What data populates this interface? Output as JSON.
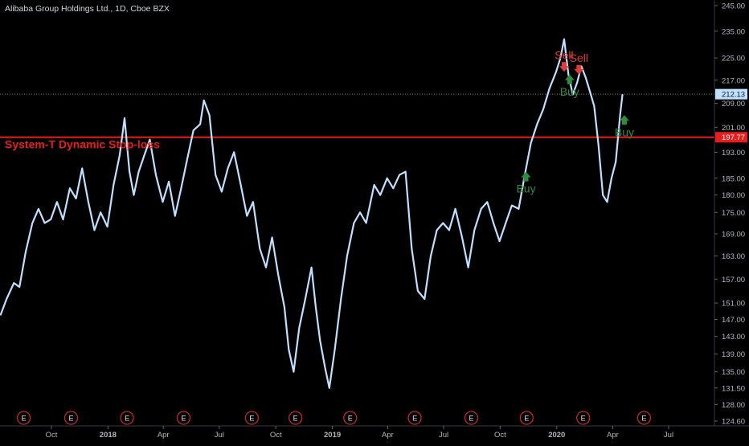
{
  "header": {
    "symbol_title": "Alibaba Group Holdings Ltd., 1D, Cboe BZX"
  },
  "colors": {
    "background": "#000000",
    "price_line": "#bfe0ff",
    "stop_line": "#e81d1d",
    "sell": "#e03a3a",
    "buy": "#2e8b3f",
    "axis_text": "#b2b5be",
    "earnings": "#c0272d"
  },
  "chart_data": {
    "type": "line",
    "title": "Alibaba Group Holdings Ltd., 1D, Cboe BZX",
    "xlabel": "",
    "ylabel": "",
    "ylim": [
      122.5,
      248
    ],
    "y_scale": "log",
    "grid": false,
    "y_ticks": [
      "245.00",
      "235.00",
      "225.00",
      "217.00",
      "209.00",
      "201.00",
      "193.00",
      "185.00",
      "180.00",
      "175.00",
      "169.00",
      "163.00",
      "157.00",
      "151.00",
      "147.00",
      "143.00",
      "139.00",
      "135.00",
      "131.50",
      "128.00",
      "124.60"
    ],
    "x_tick_labels": [
      "Oct",
      "2018",
      "Apr",
      "Jul",
      "Oct",
      "2019",
      "Apr",
      "Jul",
      "Oct",
      "2020",
      "Apr",
      "Jul"
    ],
    "x_tick_dates": [
      "2017-10-01",
      "2018-01-01",
      "2018-04-01",
      "2018-07-01",
      "2018-10-01",
      "2019-01-01",
      "2019-04-01",
      "2019-07-01",
      "2019-10-01",
      "2020-01-01",
      "2020-04-01",
      "2020-07-01"
    ],
    "series": [
      {
        "type": "line",
        "points": [
          [
            "2017-07-10",
            148
          ],
          [
            "2017-07-20",
            152
          ],
          [
            "2017-08-01",
            156
          ],
          [
            "2017-08-10",
            155
          ],
          [
            "2017-08-20",
            164
          ],
          [
            "2017-08-31",
            172
          ],
          [
            "2017-09-10",
            176
          ],
          [
            "2017-09-20",
            172
          ],
          [
            "2017-09-30",
            173
          ],
          [
            "2017-10-10",
            178
          ],
          [
            "2017-10-20",
            173
          ],
          [
            "2017-10-31",
            182
          ],
          [
            "2017-11-10",
            179
          ],
          [
            "2017-11-20",
            188
          ],
          [
            "2017-11-30",
            178
          ],
          [
            "2017-12-10",
            170
          ],
          [
            "2017-12-20",
            175
          ],
          [
            "2017-12-31",
            171
          ],
          [
            "2018-01-10",
            183
          ],
          [
            "2018-01-20",
            192
          ],
          [
            "2018-01-28",
            204
          ],
          [
            "2018-02-05",
            187
          ],
          [
            "2018-02-12",
            180
          ],
          [
            "2018-02-20",
            187
          ],
          [
            "2018-03-01",
            192
          ],
          [
            "2018-03-10",
            197
          ],
          [
            "2018-03-20",
            186
          ],
          [
            "2018-03-31",
            178
          ],
          [
            "2018-04-10",
            184
          ],
          [
            "2018-04-20",
            174
          ],
          [
            "2018-04-30",
            182
          ],
          [
            "2018-05-10",
            191
          ],
          [
            "2018-05-20",
            200
          ],
          [
            "2018-05-31",
            202
          ],
          [
            "2018-06-06",
            210
          ],
          [
            "2018-06-15",
            205
          ],
          [
            "2018-06-25",
            186
          ],
          [
            "2018-07-05",
            181
          ],
          [
            "2018-07-15",
            188
          ],
          [
            "2018-07-25",
            193
          ],
          [
            "2018-08-05",
            183
          ],
          [
            "2018-08-15",
            174
          ],
          [
            "2018-08-25",
            178
          ],
          [
            "2018-09-05",
            165
          ],
          [
            "2018-09-15",
            160
          ],
          [
            "2018-09-25",
            168
          ],
          [
            "2018-10-05",
            158
          ],
          [
            "2018-10-15",
            150
          ],
          [
            "2018-10-22",
            140
          ],
          [
            "2018-10-30",
            135
          ],
          [
            "2018-11-08",
            145
          ],
          [
            "2018-11-18",
            152
          ],
          [
            "2018-11-28",
            160
          ],
          [
            "2018-12-05",
            150
          ],
          [
            "2018-12-12",
            142
          ],
          [
            "2018-12-20",
            136
          ],
          [
            "2018-12-27",
            131.5
          ],
          [
            "2019-01-05",
            140
          ],
          [
            "2019-01-15",
            152
          ],
          [
            "2019-01-25",
            163
          ],
          [
            "2019-02-05",
            172
          ],
          [
            "2019-02-15",
            175
          ],
          [
            "2019-02-25",
            172
          ],
          [
            "2019-03-10",
            183
          ],
          [
            "2019-03-20",
            180
          ],
          [
            "2019-03-31",
            185
          ],
          [
            "2019-04-10",
            182
          ],
          [
            "2019-04-20",
            186
          ],
          [
            "2019-04-30",
            187
          ],
          [
            "2019-05-10",
            165
          ],
          [
            "2019-05-20",
            154
          ],
          [
            "2019-05-31",
            152
          ],
          [
            "2019-06-10",
            163
          ],
          [
            "2019-06-20",
            170
          ],
          [
            "2019-06-30",
            172
          ],
          [
            "2019-07-10",
            170
          ],
          [
            "2019-07-20",
            176
          ],
          [
            "2019-07-31",
            168
          ],
          [
            "2019-08-10",
            160
          ],
          [
            "2019-08-20",
            170
          ],
          [
            "2019-08-31",
            176
          ],
          [
            "2019-09-10",
            178
          ],
          [
            "2019-09-20",
            172
          ],
          [
            "2019-09-30",
            167
          ],
          [
            "2019-10-10",
            172
          ],
          [
            "2019-10-20",
            177
          ],
          [
            "2019-10-31",
            176
          ],
          [
            "2019-11-10",
            186
          ],
          [
            "2019-11-20",
            196
          ],
          [
            "2019-11-30",
            202
          ],
          [
            "2019-12-10",
            207
          ],
          [
            "2019-12-20",
            214
          ],
          [
            "2019-12-31",
            220
          ],
          [
            "2020-01-07",
            225
          ],
          [
            "2020-01-13",
            232
          ],
          [
            "2020-01-20",
            219
          ],
          [
            "2020-01-27",
            212
          ],
          [
            "2020-02-03",
            216
          ],
          [
            "2020-02-10",
            222
          ],
          [
            "2020-02-17",
            218
          ],
          [
            "2020-02-24",
            213
          ],
          [
            "2020-03-02",
            208
          ],
          [
            "2020-03-09",
            195
          ],
          [
            "2020-03-16",
            180
          ],
          [
            "2020-03-23",
            178
          ],
          [
            "2020-03-30",
            185
          ],
          [
            "2020-04-06",
            190
          ],
          [
            "2020-04-13",
            205
          ],
          [
            "2020-04-17",
            212.13
          ]
        ]
      }
    ],
    "current_price_label": "212.13",
    "stop_level_label": "197.77",
    "stop_line_value": 197.77,
    "stop_line_label": "System-T Dynamic Stop-loss",
    "current_price_dotted_line": true,
    "signals": [
      {
        "text": "Buy",
        "kind": "buy",
        "date": "2019-11-12",
        "value": 187
      },
      {
        "text": "Sell",
        "kind": "sell",
        "date": "2020-01-13",
        "value": 220
      },
      {
        "text": "Buy",
        "kind": "buy",
        "date": "2020-01-22",
        "value": 219
      },
      {
        "text": "Sell",
        "kind": "sell",
        "date": "2020-02-06",
        "value": 219
      },
      {
        "text": "Buy",
        "kind": "buy",
        "date": "2020-04-20",
        "value": 205
      }
    ],
    "earnings_marker_label": "E",
    "earnings_dates": [
      "2017-08-17",
      "2017-11-02",
      "2018-02-01",
      "2018-05-04",
      "2018-08-23",
      "2018-11-02",
      "2019-01-30",
      "2019-05-15",
      "2019-08-15",
      "2019-11-13",
      "2020-02-13",
      "2020-05-22"
    ]
  }
}
